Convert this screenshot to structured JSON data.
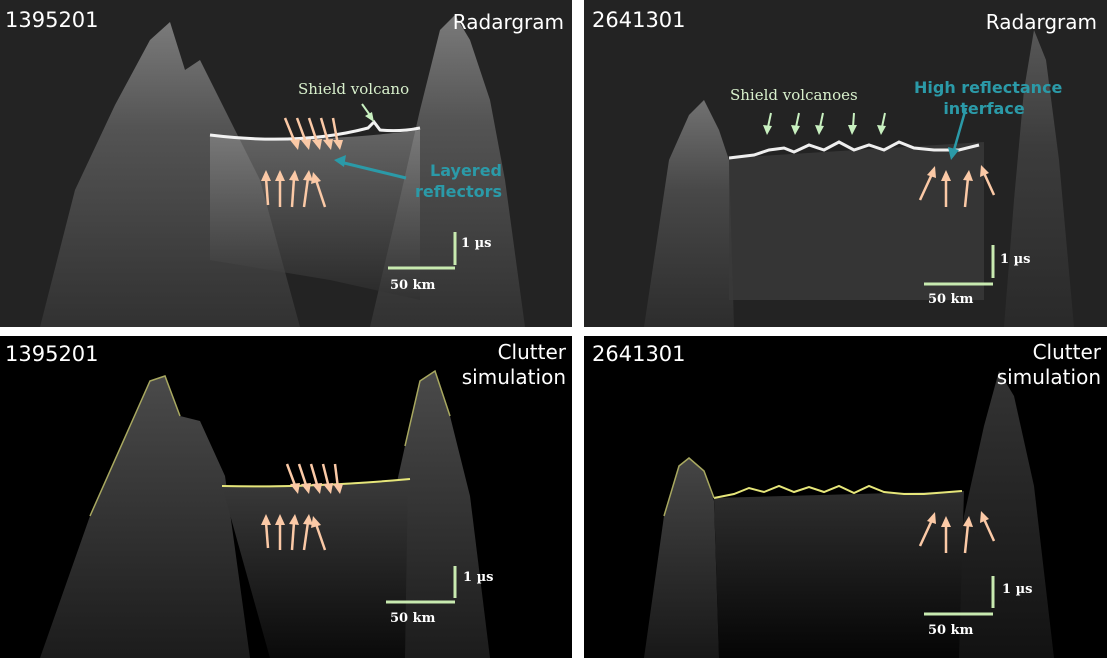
{
  "colors": {
    "ice_arrow": "#fbc9a6",
    "shield_arrow": "#c8f0c0",
    "teal_label": "#2b9aa8",
    "scale_bar": "#c8eab0",
    "surface_line": "#e6e67a",
    "radargram_bg": "#222222",
    "clutter_bg": "#000000"
  },
  "icons": {
    "ice_arrow": "arrow-icon",
    "shield_arrow": "arrow-icon",
    "scale_bar": "scale-bar-icon"
  },
  "panels": {
    "top_left": {
      "orbit_id": "1395201",
      "panel_type": "Radargram",
      "annotation_shield": "Shield volcano",
      "annotation_layered_line1": "Layered",
      "annotation_layered_line2": "reflectors",
      "scale_time": "1 µs",
      "scale_distance": "50 km"
    },
    "top_right": {
      "orbit_id": "2641301",
      "panel_type": "Radargram",
      "annotation_shield": "Shield volcanoes",
      "annotation_interface_line1": "High reflectance",
      "annotation_interface_line2": "interface",
      "scale_time": "1 µs",
      "scale_distance": "50 km"
    },
    "bottom_left": {
      "orbit_id": "1395201",
      "panel_type_line1": "Clutter",
      "panel_type_line2": "simulation",
      "scale_time": "1 µs",
      "scale_distance": "50 km"
    },
    "bottom_right": {
      "orbit_id": "2641301",
      "panel_type_line1": "Clutter",
      "panel_type_line2": "simulation",
      "scale_time": "1 µs",
      "scale_distance": "50 km"
    }
  }
}
